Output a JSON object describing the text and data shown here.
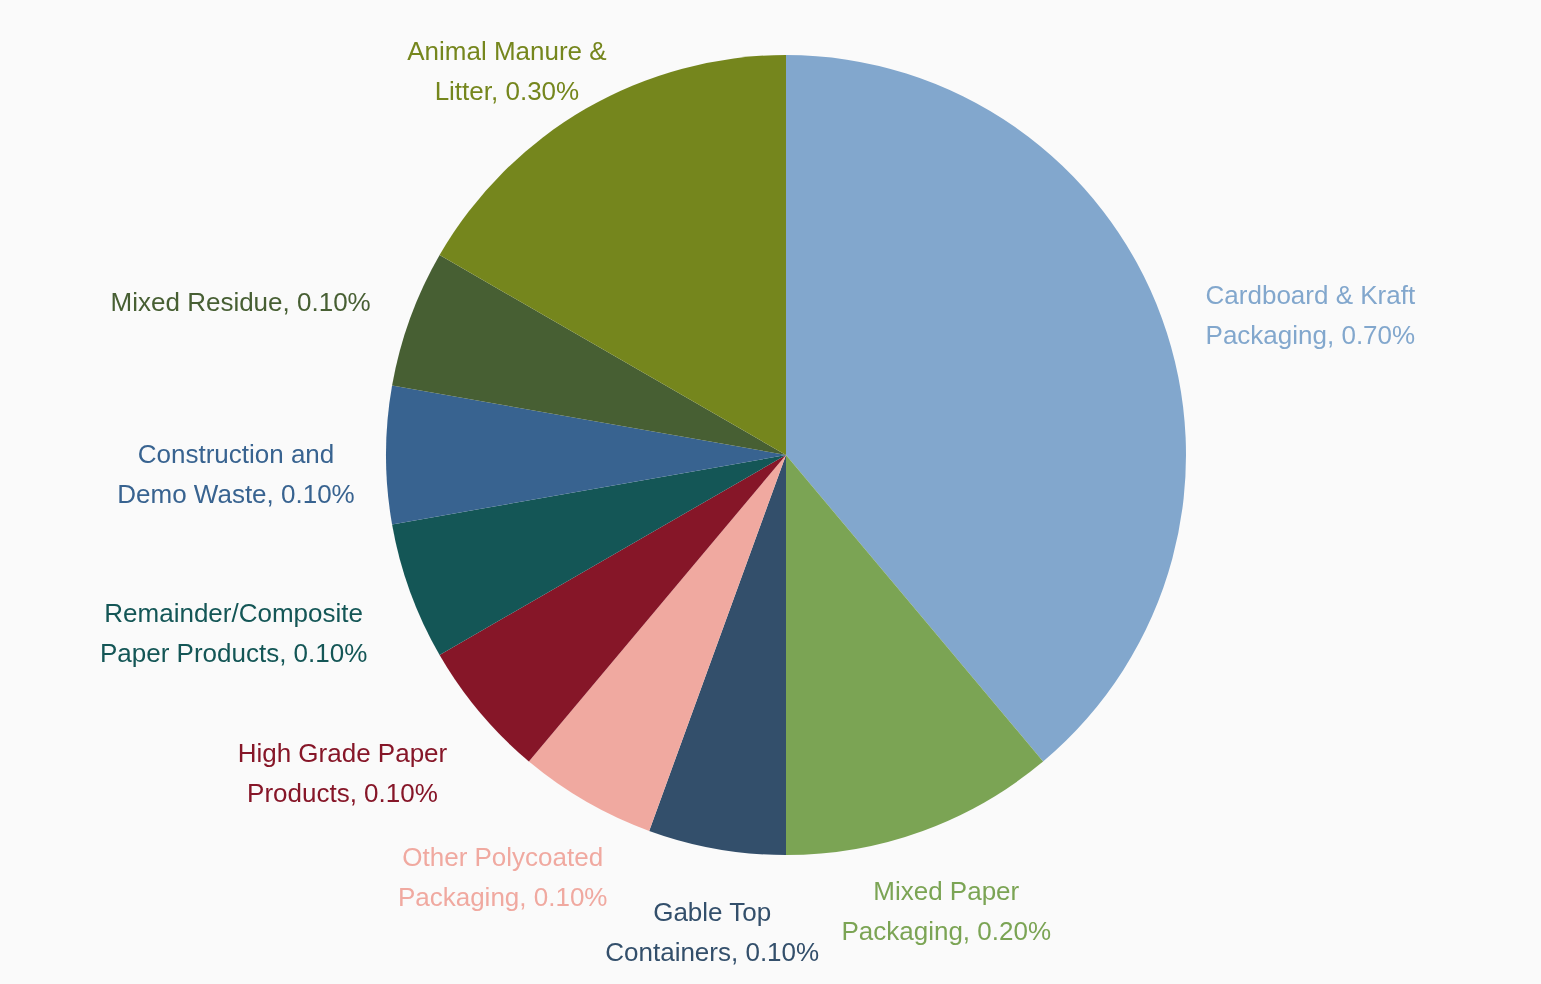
{
  "chart_data": {
    "type": "pie",
    "categories": [
      "Cardboard & Kraft Packaging",
      "Mixed Paper Packaging",
      "Gable Top Containers",
      "Other Polycoated Packaging",
      "High Grade Paper Products",
      "Remainder/Composite Paper Products",
      "Construction and Demo Waste",
      "Mixed Residue",
      "Animal Manure & Litter"
    ],
    "values": [
      0.7,
      0.2,
      0.1,
      0.1,
      0.1,
      0.1,
      0.1,
      0.1,
      0.3
    ],
    "value_labels": [
      "0.70%",
      "0.20%",
      "0.10%",
      "0.10%",
      "0.10%",
      "0.10%",
      "0.10%",
      "0.10%",
      "0.30%"
    ],
    "colors": [
      "#82a7cd",
      "#7ba454",
      "#334f6b",
      "#f0a9a0",
      "#861628",
      "#145656",
      "#386390",
      "#475f33",
      "#75861d"
    ]
  }
}
